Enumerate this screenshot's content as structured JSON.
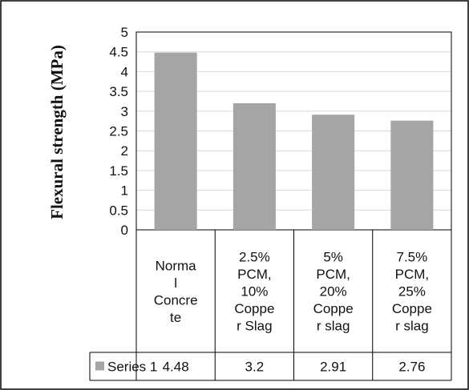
{
  "chart_data": {
    "type": "bar",
    "title": "",
    "xlabel": "",
    "ylabel": "Flexural strength  (MPa)",
    "ylim": [
      0,
      5
    ],
    "yticks": [
      "0",
      "0.5",
      "1",
      "1.5",
      "2",
      "2.5",
      "3",
      "3.5",
      "4",
      "4.5",
      "5"
    ],
    "grid": true,
    "legend": "data-table",
    "categories": [
      [
        "Norma",
        "l",
        "Concre",
        "te"
      ],
      [
        "2.5%",
        "PCM,",
        "10%",
        "Coppe",
        "r Slag"
      ],
      [
        "5%",
        "PCM,",
        "20%",
        "Coppe",
        "r slag"
      ],
      [
        "7.5%",
        "PCM,",
        "25%",
        "Coppe",
        "r slag"
      ]
    ],
    "series": [
      {
        "name": "Series 1",
        "values": [
          4.48,
          3.2,
          2.91,
          2.76
        ],
        "labels": [
          "4.48",
          "3.2",
          "2.91",
          "2.76"
        ],
        "color": "#a5a5a5"
      }
    ],
    "colors": {
      "bar": "#a5a5a5",
      "grid": "#d9d9d9",
      "border": "#000000"
    }
  }
}
